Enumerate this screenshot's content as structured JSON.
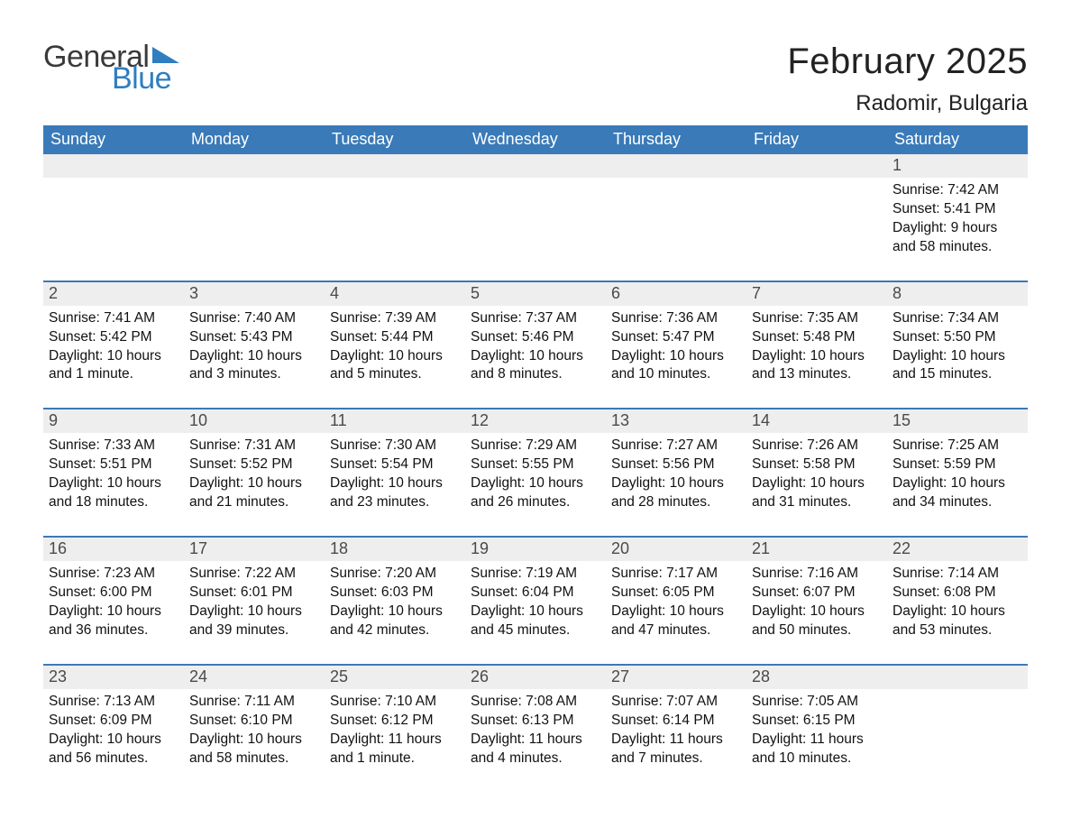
{
  "colors": {
    "header_blue": "#3a7ab8",
    "logo_blue": "#2f7ec0",
    "logo_gray": "#3a3a3a",
    "daynum_bg": "#eeeeee",
    "text": "#111111",
    "background": "#ffffff"
  },
  "typography": {
    "month_title_fontsize": 40,
    "location_fontsize": 24,
    "weekday_fontsize": 18,
    "daynum_fontsize": 18,
    "body_fontsize": 15.5,
    "logo_fontsize": 34
  },
  "logo": {
    "word1": "General",
    "word2": "Blue"
  },
  "title": "February 2025",
  "location": "Radomir, Bulgaria",
  "weekdays": [
    "Sunday",
    "Monday",
    "Tuesday",
    "Wednesday",
    "Thursday",
    "Friday",
    "Saturday"
  ],
  "labels": {
    "sunrise": "Sunrise: ",
    "sunset": "Sunset: ",
    "daylight": "Daylight: "
  },
  "weeks": [
    [
      null,
      null,
      null,
      null,
      null,
      null,
      {
        "n": 1,
        "sunrise": "7:42 AM",
        "sunset": "5:41 PM",
        "daylight": "9 hours and 58 minutes."
      }
    ],
    [
      {
        "n": 2,
        "sunrise": "7:41 AM",
        "sunset": "5:42 PM",
        "daylight": "10 hours and 1 minute."
      },
      {
        "n": 3,
        "sunrise": "7:40 AM",
        "sunset": "5:43 PM",
        "daylight": "10 hours and 3 minutes."
      },
      {
        "n": 4,
        "sunrise": "7:39 AM",
        "sunset": "5:44 PM",
        "daylight": "10 hours and 5 minutes."
      },
      {
        "n": 5,
        "sunrise": "7:37 AM",
        "sunset": "5:46 PM",
        "daylight": "10 hours and 8 minutes."
      },
      {
        "n": 6,
        "sunrise": "7:36 AM",
        "sunset": "5:47 PM",
        "daylight": "10 hours and 10 minutes."
      },
      {
        "n": 7,
        "sunrise": "7:35 AM",
        "sunset": "5:48 PM",
        "daylight": "10 hours and 13 minutes."
      },
      {
        "n": 8,
        "sunrise": "7:34 AM",
        "sunset": "5:50 PM",
        "daylight": "10 hours and 15 minutes."
      }
    ],
    [
      {
        "n": 9,
        "sunrise": "7:33 AM",
        "sunset": "5:51 PM",
        "daylight": "10 hours and 18 minutes."
      },
      {
        "n": 10,
        "sunrise": "7:31 AM",
        "sunset": "5:52 PM",
        "daylight": "10 hours and 21 minutes."
      },
      {
        "n": 11,
        "sunrise": "7:30 AM",
        "sunset": "5:54 PM",
        "daylight": "10 hours and 23 minutes."
      },
      {
        "n": 12,
        "sunrise": "7:29 AM",
        "sunset": "5:55 PM",
        "daylight": "10 hours and 26 minutes."
      },
      {
        "n": 13,
        "sunrise": "7:27 AM",
        "sunset": "5:56 PM",
        "daylight": "10 hours and 28 minutes."
      },
      {
        "n": 14,
        "sunrise": "7:26 AM",
        "sunset": "5:58 PM",
        "daylight": "10 hours and 31 minutes."
      },
      {
        "n": 15,
        "sunrise": "7:25 AM",
        "sunset": "5:59 PM",
        "daylight": "10 hours and 34 minutes."
      }
    ],
    [
      {
        "n": 16,
        "sunrise": "7:23 AM",
        "sunset": "6:00 PM",
        "daylight": "10 hours and 36 minutes."
      },
      {
        "n": 17,
        "sunrise": "7:22 AM",
        "sunset": "6:01 PM",
        "daylight": "10 hours and 39 minutes."
      },
      {
        "n": 18,
        "sunrise": "7:20 AM",
        "sunset": "6:03 PM",
        "daylight": "10 hours and 42 minutes."
      },
      {
        "n": 19,
        "sunrise": "7:19 AM",
        "sunset": "6:04 PM",
        "daylight": "10 hours and 45 minutes."
      },
      {
        "n": 20,
        "sunrise": "7:17 AM",
        "sunset": "6:05 PM",
        "daylight": "10 hours and 47 minutes."
      },
      {
        "n": 21,
        "sunrise": "7:16 AM",
        "sunset": "6:07 PM",
        "daylight": "10 hours and 50 minutes."
      },
      {
        "n": 22,
        "sunrise": "7:14 AM",
        "sunset": "6:08 PM",
        "daylight": "10 hours and 53 minutes."
      }
    ],
    [
      {
        "n": 23,
        "sunrise": "7:13 AM",
        "sunset": "6:09 PM",
        "daylight": "10 hours and 56 minutes."
      },
      {
        "n": 24,
        "sunrise": "7:11 AM",
        "sunset": "6:10 PM",
        "daylight": "10 hours and 58 minutes."
      },
      {
        "n": 25,
        "sunrise": "7:10 AM",
        "sunset": "6:12 PM",
        "daylight": "11 hours and 1 minute."
      },
      {
        "n": 26,
        "sunrise": "7:08 AM",
        "sunset": "6:13 PM",
        "daylight": "11 hours and 4 minutes."
      },
      {
        "n": 27,
        "sunrise": "7:07 AM",
        "sunset": "6:14 PM",
        "daylight": "11 hours and 7 minutes."
      },
      {
        "n": 28,
        "sunrise": "7:05 AM",
        "sunset": "6:15 PM",
        "daylight": "11 hours and 10 minutes."
      },
      null
    ]
  ]
}
